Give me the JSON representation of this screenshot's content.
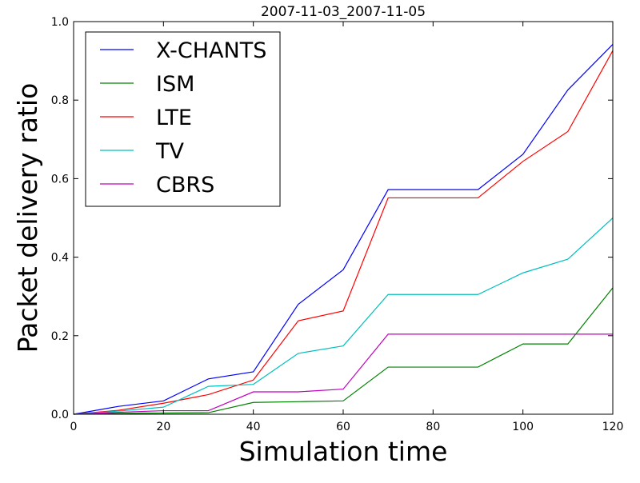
{
  "chart_data": {
    "type": "line",
    "title": "2007-11-03_2007-11-05",
    "xlabel": "Simulation time",
    "ylabel": "Packet delivery ratio",
    "xlim": [
      0,
      120
    ],
    "ylim": [
      0,
      1.0
    ],
    "x_ticks": [
      0,
      20,
      40,
      60,
      80,
      100,
      120
    ],
    "x_tick_labels": [
      "0",
      "20",
      "40",
      "60",
      "80",
      "100",
      "120"
    ],
    "y_ticks": [
      0.0,
      0.2,
      0.4,
      0.6,
      0.8,
      1.0
    ],
    "y_tick_labels": [
      "0.0",
      "0.2",
      "0.4",
      "0.6",
      "0.8",
      "1.0"
    ],
    "grid": false,
    "legend_position": "top-left",
    "x": [
      0,
      10,
      20,
      30,
      40,
      50,
      60,
      70,
      80,
      90,
      100,
      110,
      120
    ],
    "series": [
      {
        "name": "X-CHANTS",
        "color": "#0000ff",
        "values": [
          0.0,
          0.02,
          0.034,
          0.09,
          0.108,
          0.28,
          0.368,
          0.572,
          0.572,
          0.572,
          0.662,
          0.826,
          0.942
        ]
      },
      {
        "name": "ISM",
        "color": "#008000",
        "values": [
          0.0,
          0.002,
          0.003,
          0.004,
          0.03,
          0.032,
          0.034,
          0.12,
          0.12,
          0.12,
          0.179,
          0.179,
          0.322
        ]
      },
      {
        "name": "LTE",
        "color": "#ff0000",
        "values": [
          0.0,
          0.01,
          0.028,
          0.05,
          0.087,
          0.238,
          0.263,
          0.551,
          0.551,
          0.551,
          0.644,
          0.72,
          0.926
        ]
      },
      {
        "name": "TV",
        "color": "#00bfbf",
        "values": [
          0.0,
          0.008,
          0.018,
          0.071,
          0.076,
          0.155,
          0.174,
          0.305,
          0.305,
          0.305,
          0.36,
          0.395,
          0.5
        ]
      },
      {
        "name": "CBRS",
        "color": "#bf00bf",
        "values": [
          0.0,
          0.005,
          0.009,
          0.009,
          0.057,
          0.057,
          0.064,
          0.204,
          0.204,
          0.204,
          0.204,
          0.204,
          0.204
        ]
      }
    ]
  }
}
